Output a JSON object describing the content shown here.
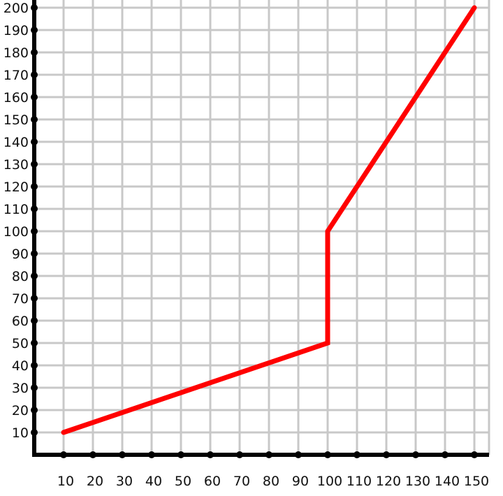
{
  "chart_data": {
    "type": "line",
    "title": "",
    "xlabel": "",
    "ylabel": "",
    "grid": true,
    "x_ticks": [
      10,
      20,
      30,
      40,
      50,
      60,
      70,
      80,
      90,
      100,
      110,
      120,
      130,
      140,
      150
    ],
    "x_tick_labels": [
      "10",
      "20",
      "30",
      "40",
      "50",
      "60",
      "70",
      "80",
      "90",
      "100",
      "110",
      "120",
      "130",
      "140",
      "150"
    ],
    "y_ticks": [
      10,
      20,
      30,
      40,
      50,
      60,
      70,
      80,
      90,
      100,
      110,
      120,
      130,
      140,
      150,
      160,
      170,
      180,
      190,
      200
    ],
    "y_tick_labels": [
      "10",
      "20",
      "30",
      "40",
      "50",
      "60",
      "70",
      "80",
      "90",
      "100",
      "110",
      "120",
      "130",
      "140",
      "150",
      "160",
      "170",
      "180",
      "190",
      "200"
    ],
    "xlim": [
      0,
      155
    ],
    "ylim": [
      0,
      200
    ],
    "series": [
      {
        "color": "#ff0000",
        "points": [
          {
            "x": 10,
            "y": 10
          },
          {
            "x": 100,
            "y": 50
          },
          {
            "x": 100,
            "y": 100
          },
          {
            "x": 150,
            "y": 200
          }
        ]
      }
    ]
  }
}
